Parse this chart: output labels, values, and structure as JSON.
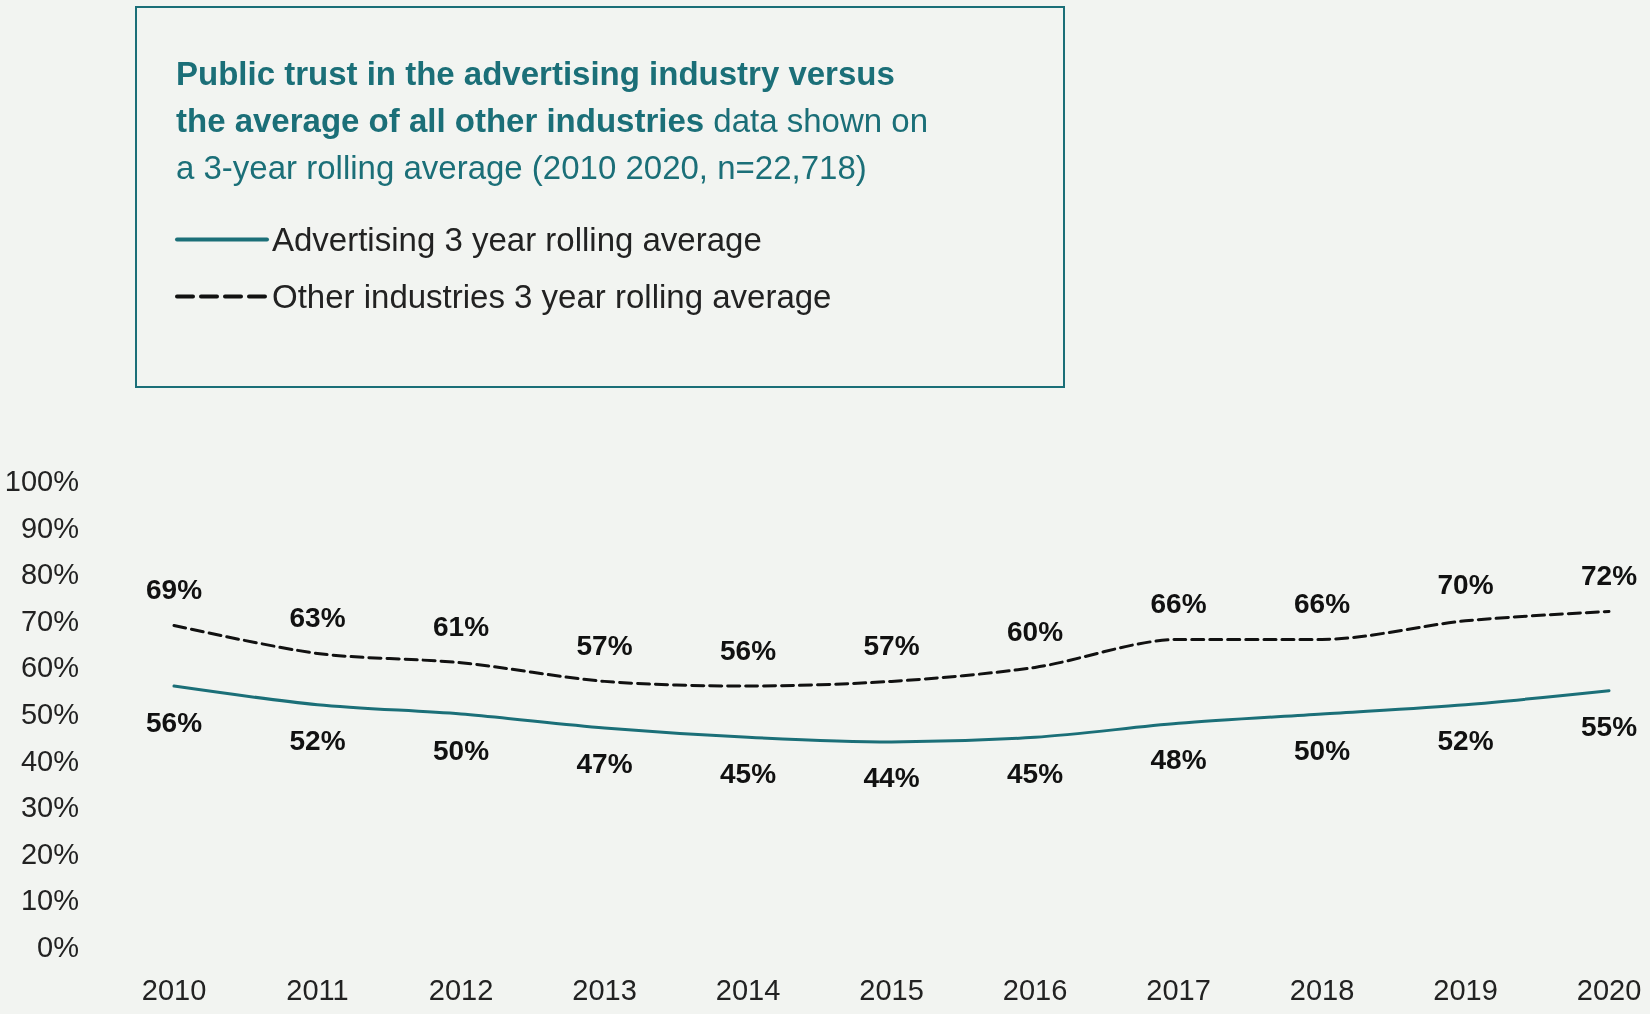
{
  "chart_data": {
    "type": "line",
    "title": "Public trust in the advertising industry versus the average of all other industries",
    "subtitle": "data shown on a 3-year rolling average (2010 2020, n=22,718)",
    "categories": [
      "2010",
      "2011",
      "2012",
      "2013",
      "2014",
      "2015",
      "2016",
      "2017",
      "2018",
      "2019",
      "2020"
    ],
    "series": [
      {
        "name": "Advertising 3 year rolling average",
        "color": "#1b6f78",
        "line_style": "solid",
        "values": [
          56,
          52,
          50,
          47,
          45,
          44,
          45,
          48,
          50,
          52,
          55
        ],
        "value_labels": [
          "56%",
          "52%",
          "50%",
          "47%",
          "45%",
          "44%",
          "45%",
          "48%",
          "50%",
          "52%",
          "55%"
        ]
      },
      {
        "name": "Other industries 3 year rolling average",
        "color": "#111111",
        "line_style": "dashed",
        "values": [
          69,
          63,
          61,
          57,
          56,
          57,
          60,
          66,
          66,
          70,
          72
        ],
        "value_labels": [
          "69%",
          "63%",
          "61%",
          "57%",
          "56%",
          "57%",
          "60%",
          "66%",
          "66%",
          "70%",
          "72%"
        ]
      }
    ],
    "ylim": [
      0,
      100
    ],
    "yticks": [
      {
        "value": 0,
        "label": "0%"
      },
      {
        "value": 10,
        "label": "10%"
      },
      {
        "value": 20,
        "label": "20%"
      },
      {
        "value": 30,
        "label": "30%"
      },
      {
        "value": 40,
        "label": "40%"
      },
      {
        "value": 50,
        "label": "50%"
      },
      {
        "value": 60,
        "label": "60%"
      },
      {
        "value": 70,
        "label": "70%"
      },
      {
        "value": 80,
        "label": "80%"
      },
      {
        "value": 90,
        "label": "90%"
      },
      {
        "value": 100,
        "label": "100%"
      }
    ],
    "grid": false,
    "legend": "top left",
    "marker": "none"
  }
}
